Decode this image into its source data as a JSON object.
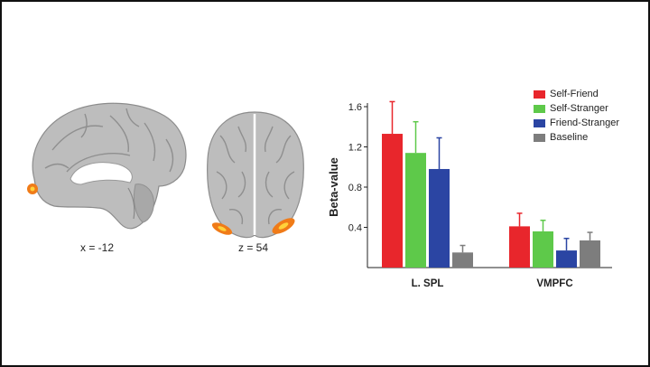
{
  "panels": {
    "sagittal_caption": "x = -12",
    "axial_caption": "z = 54"
  },
  "colors": {
    "activation": "#f07b18",
    "activation_core": "#ffd23a",
    "brain": "#bdbdbd"
  },
  "chart_data": {
    "type": "bar",
    "categories": [
      "L. SPL",
      "VMPFC"
    ],
    "ylabel": "Beta-value",
    "xlabel": "",
    "ylim": [
      0,
      1.6
    ],
    "yticks": [
      "0.4",
      "0.8",
      "1.2",
      "1.6"
    ],
    "error_bars": true,
    "legend_position": "top-right",
    "series": [
      {
        "name": "Self-Friend",
        "color": "#e8262c",
        "values": [
          1.33,
          0.41
        ],
        "errors": [
          0.32,
          0.13
        ]
      },
      {
        "name": "Self-Stranger",
        "color": "#5ec94a",
        "values": [
          1.14,
          0.36
        ],
        "errors": [
          0.31,
          0.11
        ]
      },
      {
        "name": "Friend-Stranger",
        "color": "#2b45a3",
        "values": [
          0.98,
          0.17
        ],
        "errors": [
          0.31,
          0.12
        ]
      },
      {
        "name": "Baseline",
        "color": "#7d7d7d",
        "values": [
          0.15,
          0.27
        ],
        "errors": [
          0.07,
          0.08
        ]
      }
    ]
  }
}
